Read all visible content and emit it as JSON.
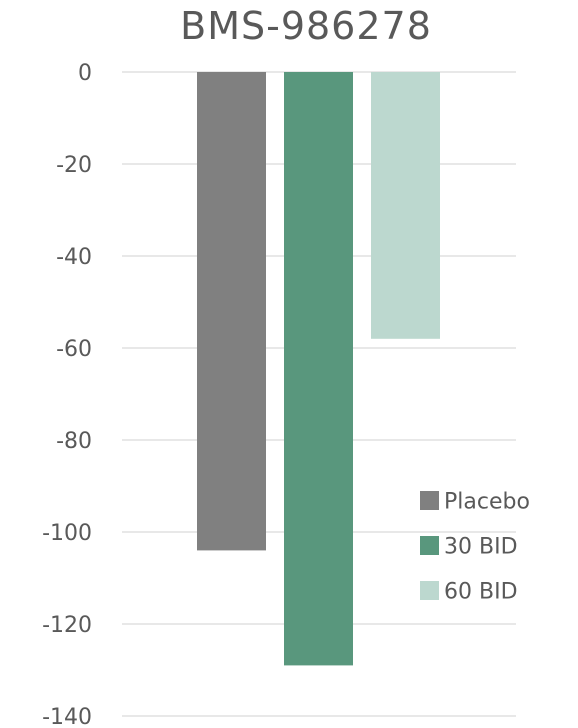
{
  "chart_data": {
    "type": "bar",
    "title": "BMS-986278",
    "xlabel": "",
    "ylabel": "",
    "categories": [
      ""
    ],
    "series": [
      {
        "name": "Placebo",
        "values": [
          -104
        ],
        "color": "#808080"
      },
      {
        "name": "30 BID",
        "values": [
          -129
        ],
        "color": "#59977d"
      },
      {
        "name": "60 BID",
        "values": [
          -58
        ],
        "color": "#bcd8cf"
      }
    ],
    "ylim": [
      -140,
      0
    ],
    "yticks": [
      "0",
      "-20",
      "-40",
      "-60",
      "-80",
      "-100",
      "-120",
      "-140"
    ],
    "ytick_values": [
      0,
      -20,
      -40,
      -60,
      -80,
      -100,
      -120,
      -140
    ],
    "grid": true,
    "legend": "bottom-right"
  }
}
